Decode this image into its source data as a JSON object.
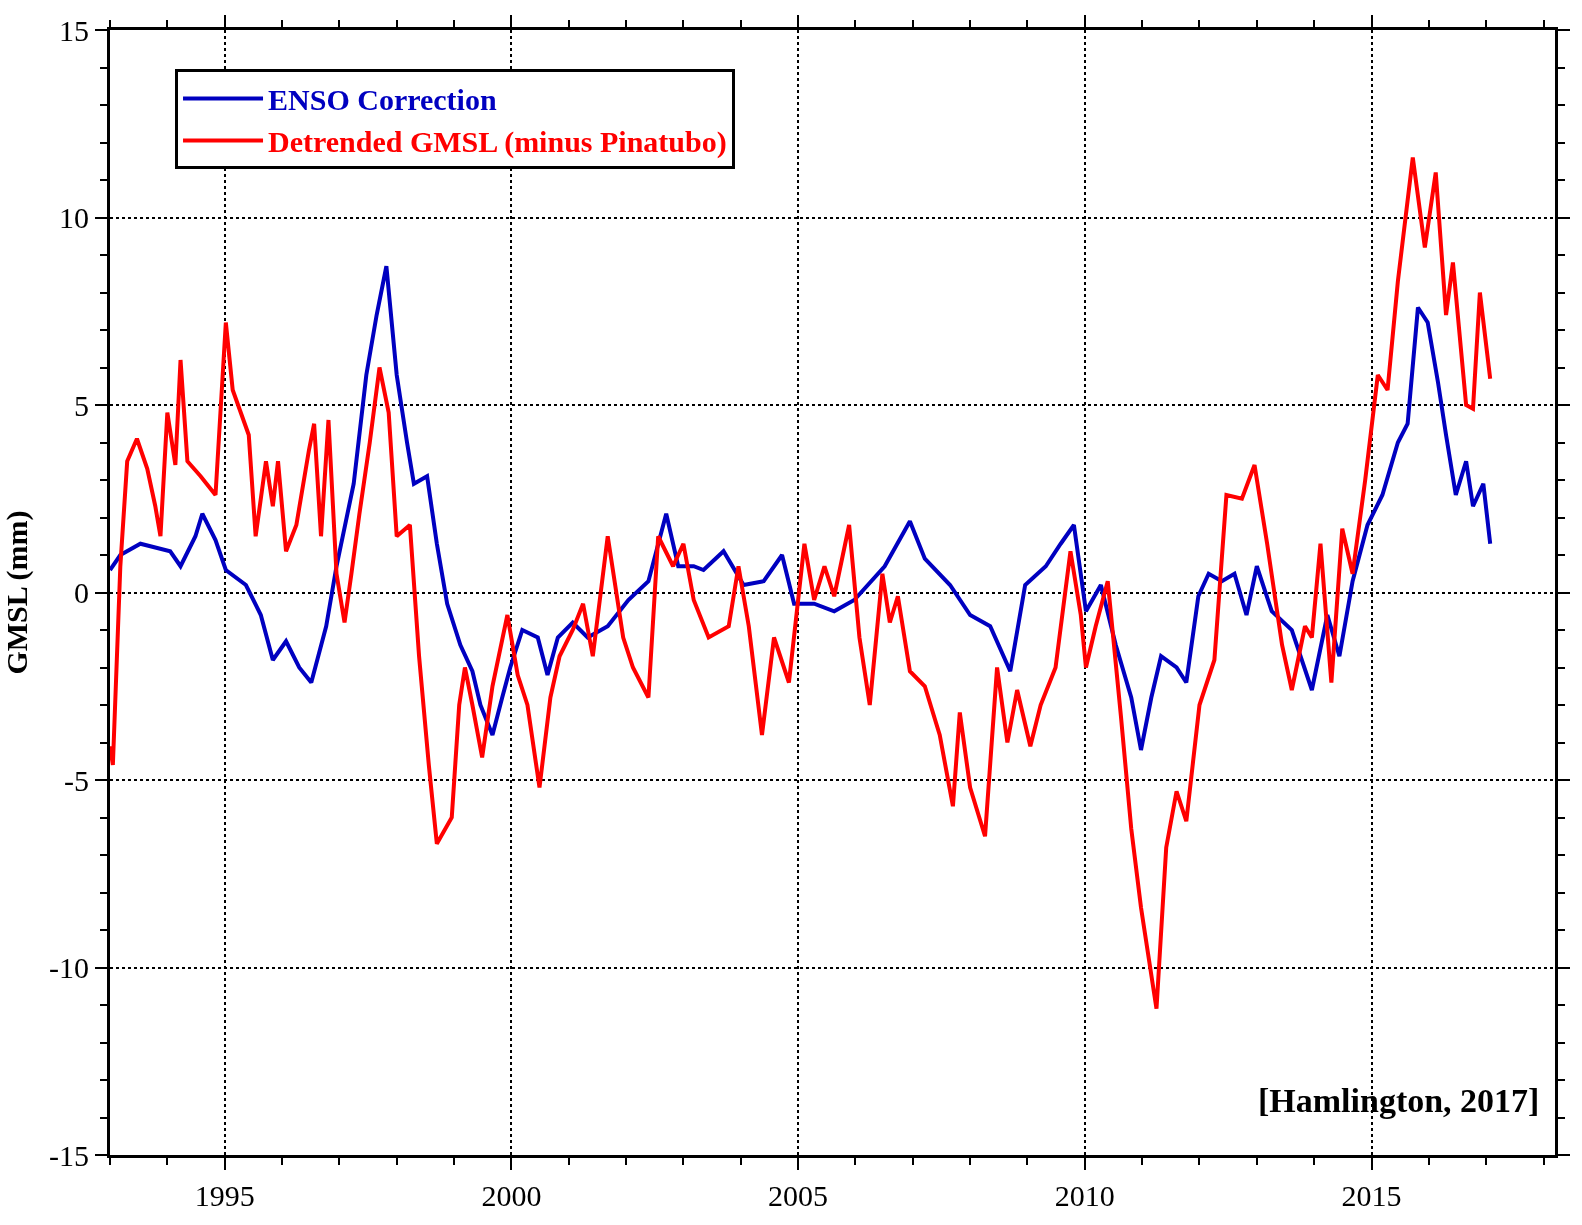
{
  "chart_data": {
    "type": "line",
    "ylabel": "GMSL (mm)",
    "xlim": [
      1993,
      2018.2
    ],
    "ylim": [
      -15,
      15
    ],
    "xticks": [
      {
        "value": 1993,
        "label": null
      },
      {
        "value": 1994,
        "label": null
      },
      1995,
      {
        "value": 1996,
        "label": null
      },
      {
        "value": 1997,
        "label": null
      },
      {
        "value": 1998,
        "label": null
      },
      {
        "value": 1999,
        "label": null
      },
      2000,
      {
        "value": 2001,
        "label": null
      },
      {
        "value": 2002,
        "label": null
      },
      {
        "value": 2003,
        "label": null
      },
      {
        "value": 2004,
        "label": null
      },
      2005,
      {
        "value": 2006,
        "label": null
      },
      {
        "value": 2007,
        "label": null
      },
      {
        "value": 2008,
        "label": null
      },
      {
        "value": 2009,
        "label": null
      },
      2010,
      {
        "value": 2011,
        "label": null
      },
      {
        "value": 2012,
        "label": null
      },
      {
        "value": 2013,
        "label": null
      },
      {
        "value": 2014,
        "label": null
      },
      2015,
      {
        "value": 2016,
        "label": null
      },
      {
        "value": 2017,
        "label": null
      },
      {
        "value": 2018,
        "label": null
      }
    ],
    "yticks": [
      -15,
      {
        "value": -14,
        "label": null
      },
      {
        "value": -13,
        "label": null
      },
      {
        "value": -12,
        "label": null
      },
      {
        "value": -11,
        "label": null
      },
      -10,
      {
        "value": -9,
        "label": null
      },
      {
        "value": -8,
        "label": null
      },
      {
        "value": -7,
        "label": null
      },
      {
        "value": -6,
        "label": null
      },
      -5,
      {
        "value": -4,
        "label": null
      },
      {
        "value": -3,
        "label": null
      },
      {
        "value": -2,
        "label": null
      },
      {
        "value": -1,
        "label": null
      },
      0,
      {
        "value": 1,
        "label": null
      },
      {
        "value": 2,
        "label": null
      },
      {
        "value": 3,
        "label": null
      },
      {
        "value": 4,
        "label": null
      },
      5,
      {
        "value": 6,
        "label": null
      },
      {
        "value": 7,
        "label": null
      },
      {
        "value": 8,
        "label": null
      },
      {
        "value": 9,
        "label": null
      },
      10,
      {
        "value": 11,
        "label": null
      },
      {
        "value": 12,
        "label": null
      },
      {
        "value": 13,
        "label": null
      },
      {
        "value": 14,
        "label": null
      },
      15
    ],
    "grid": true,
    "legend": "top left",
    "marker": "none",
    "line_style": "solid",
    "annotations": [
      "[Hamlington, 2017]"
    ],
    "series": [
      {
        "name": "ENSO Correction",
        "color": "#0000c0",
        "x": [
          1993.0,
          1993.18,
          1993.53,
          1994.05,
          1994.23,
          1994.49,
          1994.61,
          1994.84,
          1995.02,
          1995.37,
          1995.63,
          1995.84,
          1996.07,
          1996.3,
          1996.51,
          1996.77,
          1996.95,
          1997.25,
          1997.47,
          1997.65,
          1997.82,
          1998.0,
          1998.18,
          1998.3,
          1998.53,
          1998.7,
          1998.88,
          1999.11,
          1999.32,
          1999.46,
          1999.67,
          1999.84,
          1999.98,
          2000.19,
          2000.46,
          2000.63,
          2000.81,
          2001.07,
          2001.33,
          2001.68,
          2002.04,
          2002.39,
          2002.7,
          2002.91,
          2003.18,
          2003.35,
          2003.7,
          2004.05,
          2004.4,
          2004.72,
          2004.93,
          2005.28,
          2005.63,
          2005.98,
          2006.51,
          2006.95,
          2007.21,
          2007.65,
          2008.0,
          2008.35,
          2008.7,
          2008.96,
          2009.32,
          2009.58,
          2009.81,
          2010.02,
          2010.28,
          2010.54,
          2010.81,
          2010.98,
          2011.16,
          2011.33,
          2011.6,
          2011.77,
          2011.98,
          2012.16,
          2012.39,
          2012.61,
          2012.82,
          2013.0,
          2013.26,
          2013.61,
          2013.96,
          2014.23,
          2014.44,
          2014.67,
          2014.93,
          2015.19,
          2015.46,
          2015.63,
          2015.81,
          2015.98,
          2016.16,
          2016.3,
          2016.47,
          2016.65,
          2016.77,
          2016.95,
          2017.07
        ],
        "values": [
          0.6,
          1.0,
          1.3,
          1.1,
          0.7,
          1.5,
          2.1,
          1.4,
          0.6,
          0.2,
          -0.6,
          -1.8,
          -1.3,
          -2.0,
          -2.4,
          -0.9,
          0.7,
          2.9,
          5.8,
          7.4,
          8.7,
          5.8,
          4.0,
          2.9,
          3.1,
          1.3,
          -0.3,
          -1.4,
          -2.1,
          -3.0,
          -3.8,
          -2.8,
          -2.0,
          -1.0,
          -1.2,
          -2.2,
          -1.2,
          -0.8,
          -1.2,
          -0.9,
          -0.2,
          0.3,
          2.1,
          0.7,
          0.7,
          0.6,
          1.1,
          0.2,
          0.3,
          1.0,
          -0.3,
          -0.3,
          -0.5,
          -0.2,
          0.7,
          1.9,
          0.9,
          0.2,
          -0.6,
          -0.9,
          -2.1,
          0.2,
          0.7,
          1.3,
          1.8,
          -0.5,
          0.2,
          -1.4,
          -2.8,
          -4.2,
          -2.8,
          -1.7,
          -2.0,
          -2.4,
          -0.1,
          0.5,
          0.3,
          0.5,
          -0.6,
          0.7,
          -0.5,
          -1.0,
          -2.6,
          -0.6,
          -1.7,
          0.3,
          1.8,
          2.6,
          4.0,
          4.5,
          7.6,
          7.2,
          5.6,
          4.2,
          2.6,
          3.5,
          2.3,
          2.9,
          1.3
        ]
      },
      {
        "name": "Detrended GMSL (minus Pinatubo)",
        "color": "#ff0000",
        "x": [
          1993.0,
          1993.05,
          1993.18,
          1993.3,
          1993.47,
          1993.65,
          1993.79,
          1993.88,
          1994.0,
          1994.14,
          1994.23,
          1994.35,
          1994.58,
          1994.84,
          1995.02,
          1995.14,
          1995.28,
          1995.42,
          1995.54,
          1995.72,
          1995.84,
          1995.93,
          1996.07,
          1996.25,
          1996.47,
          1996.56,
          1996.68,
          1996.81,
          1996.95,
          1997.09,
          1997.21,
          1997.35,
          1997.53,
          1997.7,
          1997.86,
          1998.0,
          1998.23,
          1998.39,
          1998.56,
          1998.7,
          1998.96,
          1999.09,
          1999.19,
          1999.32,
          1999.49,
          1999.67,
          1999.93,
          2000.11,
          2000.28,
          2000.49,
          2000.68,
          2000.84,
          2001.07,
          2001.25,
          2001.42,
          2001.68,
          2001.95,
          2002.12,
          2002.39,
          2002.56,
          2002.82,
          2003.0,
          2003.18,
          2003.44,
          2003.79,
          2003.96,
          2004.14,
          2004.37,
          2004.58,
          2004.84,
          2005.11,
          2005.28,
          2005.46,
          2005.63,
          2005.89,
          2006.07,
          2006.25,
          2006.47,
          2006.6,
          2006.74,
          2006.95,
          2007.21,
          2007.47,
          2007.7,
          2007.82,
          2008.0,
          2008.26,
          2008.47,
          2008.65,
          2008.82,
          2009.05,
          2009.23,
          2009.49,
          2009.75,
          2009.93,
          2010.02,
          2010.19,
          2010.4,
          2010.63,
          2010.81,
          2010.98,
          2011.12,
          2011.25,
          2011.42,
          2011.6,
          2011.77,
          2012.0,
          2012.26,
          2012.47,
          2012.74,
          2012.96,
          2013.18,
          2013.44,
          2013.61,
          2013.84,
          2013.96,
          2014.11,
          2014.3,
          2014.49,
          2014.67,
          2014.89,
          2015.11,
          2015.28,
          2015.46,
          2015.72,
          2015.93,
          2016.12,
          2016.3,
          2016.42,
          2016.65,
          2016.77,
          2016.89,
          2017.07
        ],
        "values": [
          -4.1,
          -4.6,
          0.7,
          3.5,
          4.1,
          3.3,
          2.3,
          1.5,
          4.8,
          3.4,
          6.2,
          3.5,
          3.1,
          2.6,
          7.2,
          5.4,
          4.8,
          4.2,
          1.5,
          3.5,
          2.3,
          3.5,
          1.1,
          1.8,
          3.8,
          4.5,
          1.5,
          4.6,
          0.5,
          -0.8,
          0.5,
          2.1,
          4.0,
          6.0,
          4.8,
          1.5,
          1.8,
          -1.7,
          -4.6,
          -6.7,
          -6.0,
          -3.0,
          -2.0,
          -3.0,
          -4.4,
          -2.5,
          -0.6,
          -2.2,
          -3.0,
          -5.2,
          -2.8,
          -1.7,
          -1.0,
          -0.3,
          -1.7,
          1.5,
          -1.2,
          -2.0,
          -2.8,
          1.5,
          0.7,
          1.3,
          -0.2,
          -1.2,
          -0.9,
          0.7,
          -0.9,
          -3.8,
          -1.2,
          -2.4,
          1.3,
          -0.2,
          0.7,
          -0.1,
          1.8,
          -1.2,
          -3.0,
          0.5,
          -0.8,
          -0.1,
          -2.1,
          -2.5,
          -3.8,
          -5.7,
          -3.2,
          -5.2,
          -6.5,
          -2.0,
          -4.0,
          -2.6,
          -4.1,
          -3.0,
          -2.0,
          1.1,
          -0.6,
          -2.0,
          -0.9,
          0.3,
          -3.3,
          -6.3,
          -8.4,
          -9.8,
          -11.1,
          -6.8,
          -5.3,
          -6.1,
          -3.0,
          -1.8,
          2.6,
          2.5,
          3.4,
          1.3,
          -1.4,
          -2.6,
          -0.9,
          -1.2,
          1.3,
          -2.4,
          1.7,
          0.5,
          3.0,
          5.8,
          5.4,
          8.3,
          11.6,
          9.2,
          11.2,
          7.4,
          8.8,
          5.0,
          4.9,
          8.0,
          5.7
        ]
      }
    ]
  }
}
